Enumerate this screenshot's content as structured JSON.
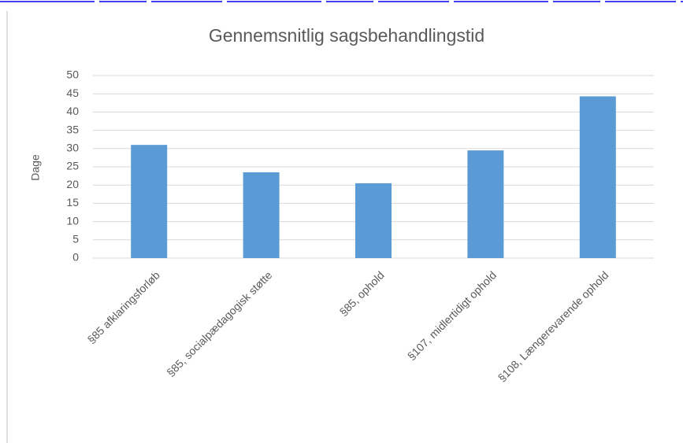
{
  "chart_data": {
    "type": "bar",
    "title": "Gennemsnitlig sagsbehandlingstid",
    "y_label": "Dage",
    "categories": [
      "§85 afklaringsforløb",
      "§85, socialpædagogisk støtte",
      "§85, ophold",
      "§107, midlertidigt ophold",
      "§108, Længerevarende ophold"
    ],
    "values": [
      31,
      23.5,
      20.5,
      29.5,
      44.3
    ],
    "color": "#5b9bd5",
    "ylim": [
      0,
      50
    ],
    "yticks": [
      0,
      5,
      10,
      15,
      20,
      25,
      30,
      35,
      40,
      45,
      50
    ],
    "grid": true
  }
}
